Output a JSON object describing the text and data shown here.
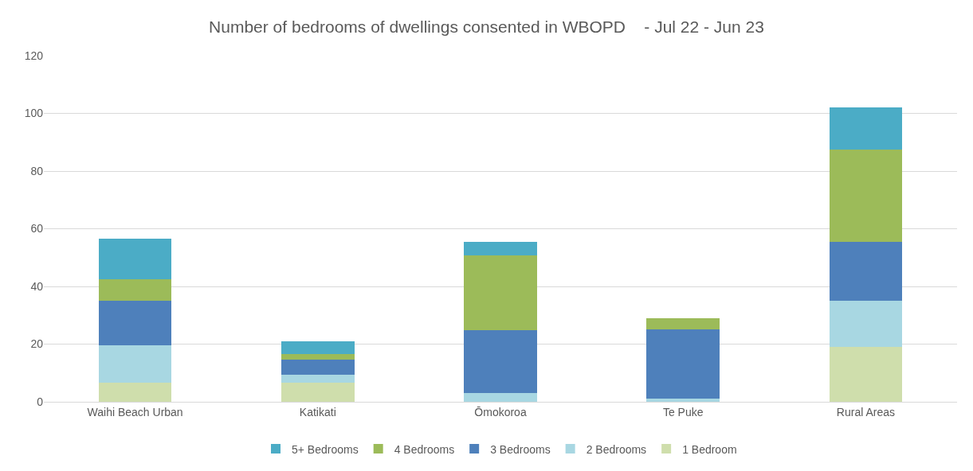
{
  "chart_data": {
    "type": "bar",
    "title": "Number of bedrooms of dwellings consented in WBOPD    - Jul 22 - Jun 23",
    "categories": [
      "Waihi Beach Urban",
      "Katikati",
      "Ōmokoroa",
      "Te Puke",
      "Rural Areas"
    ],
    "stacked": true,
    "ylim": [
      0,
      120
    ],
    "yticks": [
      0,
      20,
      40,
      60,
      80,
      100,
      120
    ],
    "grid": "y",
    "legend": "bottom",
    "series": [
      {
        "name": "1 Bedroom",
        "color": "#cfdeac",
        "values": [
          6.5,
          6.5,
          0,
          0,
          19
        ]
      },
      {
        "name": "2 Bedrooms",
        "color": "#a8d7e2",
        "values": [
          13,
          3,
          3,
          1,
          16
        ]
      },
      {
        "name": "3 Bedrooms",
        "color": "#4e80bb",
        "values": [
          15.5,
          5,
          21.7,
          24,
          20.5
        ]
      },
      {
        "name": "4 Bedrooms",
        "color": "#9cbb59",
        "values": [
          7.5,
          2,
          26,
          4,
          32
        ]
      },
      {
        "name": "5+ Bedrooms",
        "color": "#4bacc6",
        "values": [
          14,
          4.5,
          4.7,
          0,
          14.5
        ]
      }
    ]
  }
}
